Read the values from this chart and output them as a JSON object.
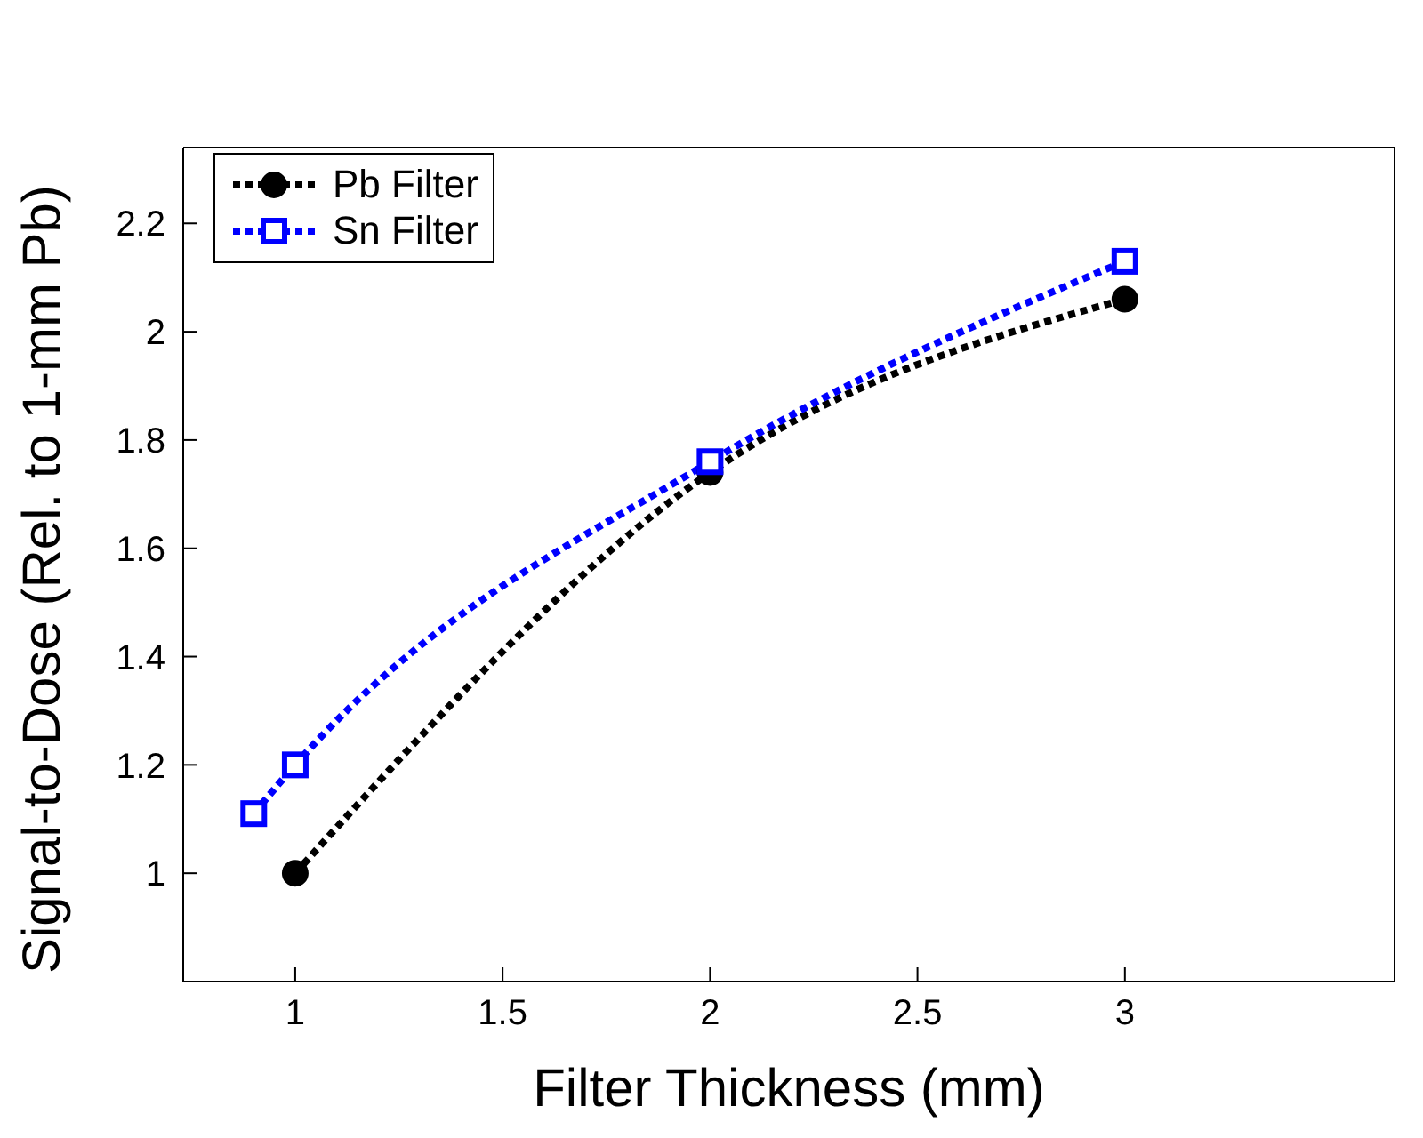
{
  "chart_data": {
    "type": "line",
    "xlabel": "Filter Thickness (mm)",
    "ylabel": "Signal-to-Dose (Rel. to 1-mm Pb)",
    "xlim": [
      0.73,
      3.65
    ],
    "xticks": [
      1,
      1.5,
      2,
      2.5,
      3
    ],
    "ylim": [
      0.8,
      2.34
    ],
    "yticks": [
      1,
      1.2,
      1.4,
      1.6,
      1.8,
      2,
      2.2
    ],
    "legend": "top left",
    "line_style": "dotted",
    "series": [
      {
        "name": "Pb Filter",
        "color": "#000000",
        "marker": "circle",
        "x": [
          1,
          2,
          3
        ],
        "values": [
          1.0,
          1.74,
          2.06
        ]
      },
      {
        "name": "Sn Filter",
        "color": "#0000ff",
        "marker": "square",
        "x": [
          0.9,
          1,
          2,
          3
        ],
        "values": [
          1.11,
          1.2,
          1.76,
          2.13
        ]
      }
    ]
  }
}
